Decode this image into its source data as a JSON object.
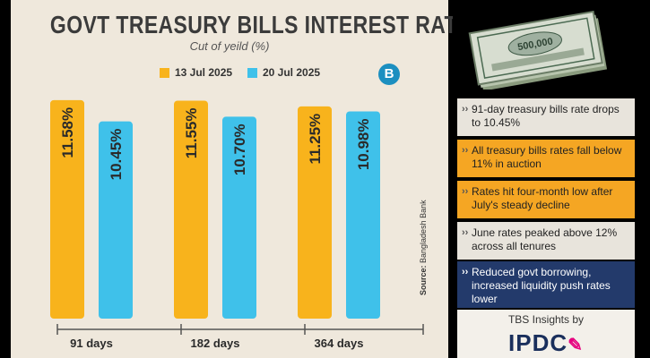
{
  "chart_data": {
    "type": "bar",
    "title": "GOVT TREASURY BILLS INTEREST RATES",
    "subtitle": "Cut of yeild (%)",
    "categories": [
      "91 days",
      "182 days",
      "364 days"
    ],
    "series": [
      {
        "name": "13 Jul 2025",
        "color": "#f8b31c",
        "values": [
          11.58,
          11.55,
          11.25
        ],
        "labels": [
          "11.58%",
          "11.55%",
          "11.25%"
        ]
      },
      {
        "name": "20 Jul 2025",
        "color": "#3fc1ea",
        "values": [
          10.45,
          10.7,
          10.98
        ],
        "labels": [
          "10.45%",
          "10.70%",
          "10.98%"
        ]
      }
    ],
    "ylim": [
      0,
      12
    ],
    "xlabel": "",
    "ylabel": "",
    "source_label": "Source:",
    "source_text": "Bangladesh Bank",
    "logo_letter": "B"
  },
  "insights": [
    "91-day treasury bills rate drops to 10.45%",
    "All treasury bills rates fall below 11% in auction",
    "Rates hit four-month low after July's steady decline",
    "June rates peaked above 12% across all tenures",
    "Reduced govt borrowing, increased liquidity push rates lower"
  ],
  "footer": {
    "tbs_insights": "TBS Insights by",
    "brand": "IPDC"
  },
  "banknote_text": "500,000"
}
